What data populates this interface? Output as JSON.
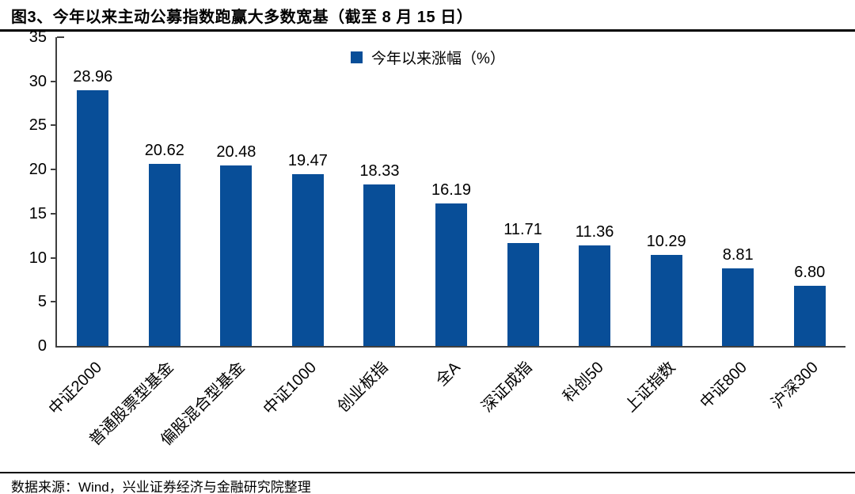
{
  "title": "图3、今年以来主动公募指数跑赢大多数宽基（截至 8 月 15 日）",
  "legend": {
    "label": "今年以来涨幅（%）"
  },
  "footer": {
    "source": "数据来源：Wind，兴业证券经济与金融研究院整理"
  },
  "colors": {
    "bar": "#084E98",
    "axis": "#3f3f3f",
    "rule": "#000000"
  },
  "chart_data": {
    "type": "bar",
    "title": "图3、今年以来主动公募指数跑赢大多数宽基（截至 8 月 15 日）",
    "legend_entries": [
      "今年以来涨幅（%）"
    ],
    "legend_position": "top-center",
    "categories": [
      "中证2000",
      "普通股票型基金",
      "偏股混合型基金",
      "中证1000",
      "创业板指",
      "全A",
      "深证成指",
      "科创50",
      "上证指数",
      "中证800",
      "沪深300"
    ],
    "values": [
      28.96,
      20.62,
      20.48,
      19.47,
      18.33,
      16.19,
      11.71,
      11.36,
      10.29,
      8.81,
      6.8
    ],
    "value_label_decimals": 2,
    "xlabel": "",
    "ylabel": "",
    "ylim": [
      0,
      35
    ],
    "yticks": [
      0,
      5,
      10,
      15,
      20,
      25,
      30,
      35
    ],
    "grid": false,
    "source_note": "数据来源：Wind，兴业证券经济与金融研究院整理"
  }
}
